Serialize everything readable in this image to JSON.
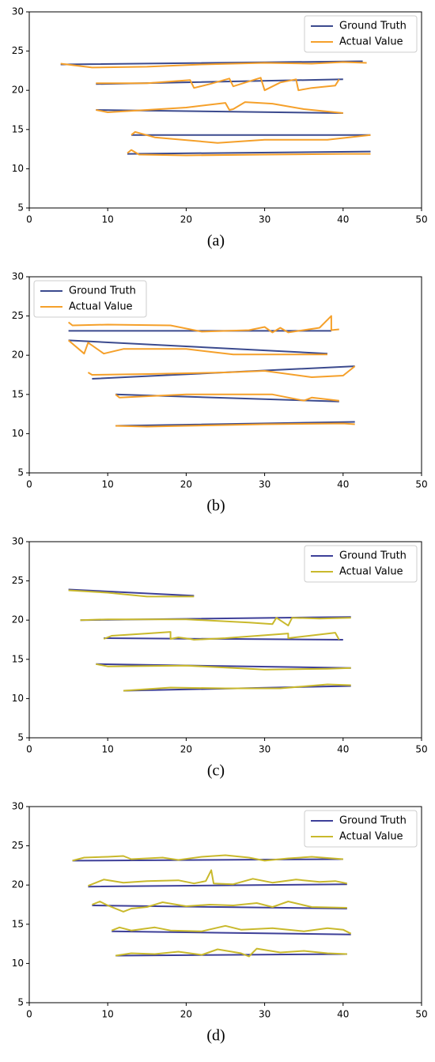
{
  "chart_data": [
    {
      "type": "line",
      "label": "(a)",
      "xlim": [
        0,
        50
      ],
      "ylim": [
        5,
        30
      ],
      "xticks": [
        0,
        10,
        20,
        30,
        40,
        50
      ],
      "yticks": [
        5,
        10,
        15,
        20,
        25,
        30
      ],
      "legend": "upper right",
      "series": [
        {
          "name": "Ground Truth",
          "color": "#3b4a8e",
          "x": [
            4,
            42.5,
            null,
            8.5,
            40,
            null,
            8.5,
            40,
            null,
            13,
            43.5,
            null,
            12.5,
            43.5
          ],
          "values": [
            23.3,
            23.7,
            null,
            20.8,
            21.4,
            null,
            17.5,
            17.1,
            null,
            14.3,
            14.3,
            null,
            11.9,
            12.2
          ]
        },
        {
          "name": "Actual Value",
          "color": "#f5a02a",
          "x": [
            4,
            8,
            15,
            22,
            30,
            36,
            40,
            43,
            null,
            8.5,
            15,
            20.5,
            21,
            23,
            25.5,
            26,
            29.5,
            30,
            32,
            34,
            34.3,
            36,
            39,
            39.5,
            null,
            8.5,
            10,
            15,
            20,
            25,
            25.5,
            26,
            27.5,
            31,
            35,
            40,
            null,
            13,
            13.5,
            16,
            24,
            30,
            38,
            43.5,
            null,
            12.5,
            13,
            14,
            20,
            30,
            40,
            43.5
          ],
          "values": [
            23.4,
            22.9,
            23.0,
            23.3,
            23.5,
            23.4,
            23.6,
            23.5,
            null,
            20.9,
            20.9,
            21.3,
            20.3,
            20.8,
            21.5,
            20.5,
            21.6,
            20.0,
            21.0,
            21.4,
            20.0,
            20.3,
            20.6,
            21.4,
            null,
            17.5,
            17.2,
            17.5,
            17.8,
            18.4,
            17.5,
            17.6,
            18.5,
            18.3,
            17.6,
            17.1,
            null,
            14.3,
            14.7,
            14.0,
            13.3,
            13.7,
            13.7,
            14.3,
            null,
            12.0,
            12.4,
            11.8,
            11.7,
            11.8,
            11.9,
            11.9
          ]
        }
      ]
    },
    {
      "type": "line",
      "label": "(b)",
      "xlim": [
        0,
        50
      ],
      "ylim": [
        5,
        30
      ],
      "xticks": [
        0,
        10,
        20,
        30,
        40,
        50
      ],
      "yticks": [
        5,
        10,
        15,
        20,
        25,
        30
      ],
      "legend": "upper left",
      "series": [
        {
          "name": "Ground Truth",
          "color": "#3b4a8e",
          "x": [
            5,
            38.5,
            null,
            5,
            38,
            null,
            8,
            41.5,
            null,
            11,
            39.5,
            null,
            11,
            41.5
          ],
          "values": [
            23.1,
            23.1,
            null,
            21.9,
            20.2,
            null,
            17,
            18.6,
            null,
            15,
            14.1,
            null,
            11,
            11.5
          ]
        },
        {
          "name": "Actual Value",
          "color": "#f5a02a",
          "x": [
            5,
            5.5,
            10,
            18,
            22,
            28,
            30,
            31,
            32,
            33,
            37,
            38.5,
            38.5,
            39.5,
            null,
            5,
            7,
            7.5,
            9.5,
            12,
            20,
            26,
            38,
            null,
            7.5,
            8,
            15,
            25,
            30,
            36,
            40,
            41.5,
            null,
            11,
            11.5,
            20,
            31,
            35,
            36,
            39.5,
            null,
            11,
            15,
            20,
            30,
            40,
            41.5
          ],
          "values": [
            24.2,
            23.8,
            23.9,
            23.8,
            23,
            23.2,
            23.6,
            22.9,
            23.5,
            22.9,
            23.5,
            25,
            23.2,
            23.3,
            null,
            21.9,
            20.2,
            21.6,
            20.2,
            20.8,
            20.8,
            20.1,
            20.1,
            null,
            17.8,
            17.5,
            17.6,
            17.8,
            18,
            17.2,
            17.4,
            18.6,
            null,
            15,
            14.6,
            15,
            15,
            14.2,
            14.6,
            14.2,
            null,
            11,
            10.9,
            11,
            11.2,
            11.3,
            11.2
          ]
        }
      ]
    },
    {
      "type": "line",
      "label": "(c)",
      "xlim": [
        0,
        50
      ],
      "ylim": [
        5,
        30
      ],
      "xticks": [
        0,
        10,
        20,
        30,
        40,
        50
      ],
      "yticks": [
        5,
        10,
        15,
        20,
        25,
        30
      ],
      "legend": "upper right",
      "series": [
        {
          "name": "Ground Truth",
          "color": "#3d3f98",
          "x": [
            5,
            21,
            null,
            6.5,
            41,
            null,
            9.5,
            40,
            null,
            8.5,
            41,
            null,
            12,
            41
          ],
          "values": [
            23.9,
            23.1,
            null,
            20,
            20.4,
            null,
            17.7,
            17.5,
            null,
            14.4,
            13.9,
            null,
            11,
            11.6
          ]
        },
        {
          "name": "Actual Value",
          "color": "#c9b92c",
          "x": [
            5,
            10,
            15,
            21,
            null,
            6.5,
            10,
            20,
            28,
            31,
            31.5,
            33,
            33.5,
            37,
            41,
            null,
            9.5,
            10.5,
            15,
            18,
            18,
            19,
            20.5,
            21,
            25,
            33,
            33,
            39,
            39.5,
            null,
            8.5,
            10,
            20,
            30,
            38,
            41,
            null,
            12,
            18,
            25,
            32,
            38,
            41
          ],
          "values": [
            23.8,
            23.5,
            23,
            23,
            null,
            20,
            20.1,
            20.1,
            19.7,
            19.5,
            20.3,
            19.3,
            20.3,
            20.2,
            20.3,
            null,
            17.6,
            18,
            18.3,
            18.5,
            17.6,
            17.8,
            17.6,
            17.5,
            17.7,
            18.3,
            17.7,
            18.4,
            17.5,
            null,
            14.4,
            14.1,
            14.2,
            13.7,
            13.8,
            13.9,
            null,
            11,
            11.4,
            11.3,
            11.3,
            11.8,
            11.7
          ]
        }
      ]
    },
    {
      "type": "line",
      "label": "(d)",
      "xlim": [
        0,
        50
      ],
      "ylim": [
        5,
        30
      ],
      "xticks": [
        0,
        10,
        20,
        30,
        40,
        50
      ],
      "yticks": [
        5,
        10,
        15,
        20,
        25,
        30
      ],
      "legend": "upper right",
      "series": [
        {
          "name": "Ground Truth",
          "color": "#3d3f98",
          "x": [
            5.5,
            40,
            null,
            7.5,
            40.5,
            null,
            8,
            40.5,
            null,
            10.5,
            41,
            null,
            11,
            40.5
          ],
          "values": [
            23.1,
            23.3,
            null,
            19.8,
            20.1,
            null,
            17.4,
            17,
            null,
            14.1,
            13.7,
            null,
            11,
            11.2
          ]
        },
        {
          "name": "Actual Value",
          "color": "#c9b92c",
          "x": [
            5.5,
            7,
            10,
            12,
            13,
            17,
            19,
            22,
            25,
            28,
            30,
            33,
            36,
            40,
            null,
            7.5,
            9.5,
            12,
            15,
            19,
            21,
            22.5,
            23.2,
            23.5,
            26,
            28.5,
            31,
            34,
            37,
            39,
            40.5,
            null,
            8,
            9,
            10,
            12,
            13,
            15,
            17,
            20,
            23,
            26,
            29,
            31,
            33,
            36,
            40.5,
            null,
            10.5,
            11.5,
            13,
            16,
            18,
            22,
            25,
            27,
            31,
            35,
            38,
            40,
            41,
            null,
            11,
            13,
            16,
            19,
            22,
            24,
            27,
            28,
            29,
            32,
            35,
            38,
            40.5
          ],
          "values": [
            23.1,
            23.5,
            23.6,
            23.7,
            23.3,
            23.5,
            23.2,
            23.6,
            23.8,
            23.5,
            23.1,
            23.4,
            23.6,
            23.3,
            null,
            19.9,
            20.7,
            20.3,
            20.5,
            20.6,
            20.2,
            20.5,
            21.9,
            20.2,
            20.1,
            20.8,
            20.3,
            20.7,
            20.4,
            20.5,
            20.2,
            null,
            17.5,
            17.9,
            17.4,
            16.6,
            17,
            17.2,
            17.8,
            17.3,
            17.5,
            17.4,
            17.7,
            17.2,
            17.9,
            17.2,
            17.1,
            null,
            14.2,
            14.6,
            14.2,
            14.6,
            14.2,
            14.1,
            14.8,
            14.3,
            14.5,
            14.1,
            14.5,
            14.3,
            13.8,
            null,
            11,
            11.3,
            11.2,
            11.5,
            11.1,
            11.8,
            11.3,
            10.9,
            11.9,
            11.4,
            11.6,
            11.3,
            11.2
          ]
        }
      ]
    }
  ]
}
